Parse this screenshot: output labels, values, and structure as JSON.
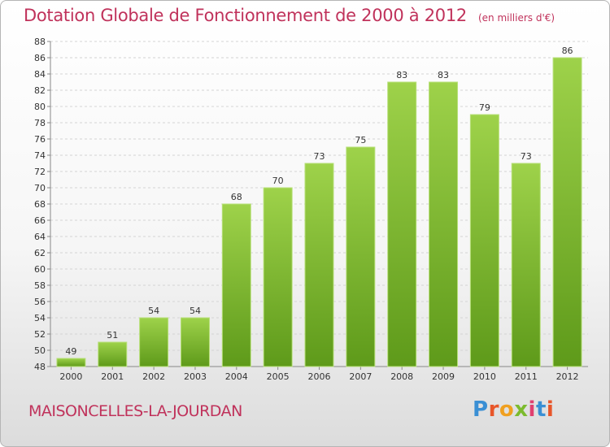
{
  "header": {
    "title": "Dotation Globale de Fonctionnement de 2000 à 2012",
    "unit": "(en milliers d'€)"
  },
  "footer": {
    "commune": "MAISONCELLES-LA-JOURDAN",
    "logo": "Proxiti"
  },
  "colors": {
    "title": "#c0325b",
    "bar_light": "#9ed24a",
    "bar_dark": "#5e9a1a",
    "logo": [
      "#3a8fd4",
      "#e8562a",
      "#f0a020",
      "#7cbb2e",
      "#e04070",
      "#3a8fd4",
      "#e8562a"
    ]
  },
  "chart_data": {
    "type": "bar",
    "categories": [
      "2000",
      "2001",
      "2002",
      "2003",
      "2004",
      "2005",
      "2006",
      "2007",
      "2008",
      "2009",
      "2010",
      "2011",
      "2012"
    ],
    "values": [
      49,
      51,
      54,
      54,
      68,
      70,
      73,
      75,
      83,
      83,
      79,
      73,
      86
    ],
    "ylim": [
      48,
      88
    ],
    "yticks": [
      48,
      50,
      52,
      54,
      56,
      58,
      60,
      62,
      64,
      66,
      68,
      70,
      72,
      74,
      76,
      78,
      80,
      82,
      84,
      86,
      88
    ],
    "grid": true
  }
}
